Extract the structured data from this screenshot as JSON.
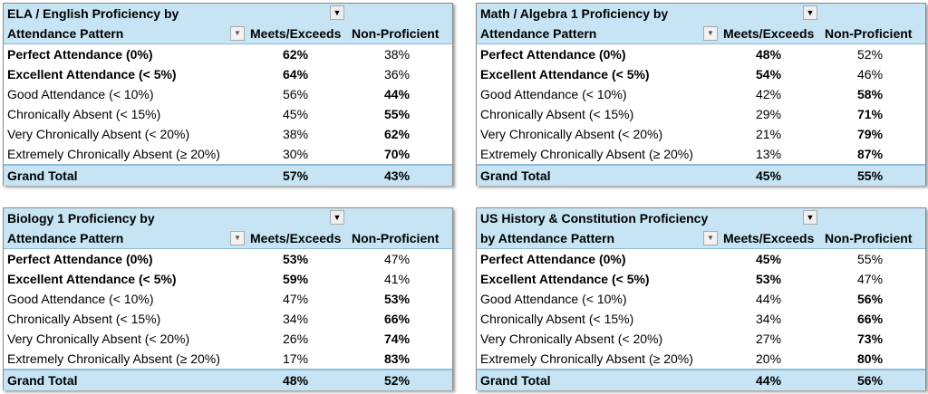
{
  "columns": {
    "meets": "Meets/Exceeds",
    "non": "Non-Proficient"
  },
  "panels": [
    {
      "title1": "ELA / English Proficiency by",
      "title2": "Attendance Pattern",
      "rows": [
        [
          "Perfect Attendance (0%)",
          "62%",
          "38%",
          1,
          1,
          0
        ],
        [
          "Excellent Attendance (< 5%)",
          "64%",
          "36%",
          1,
          1,
          0
        ],
        [
          "Good Attendance (< 10%)",
          "56%",
          "44%",
          0,
          0,
          1
        ],
        [
          "Chronically Absent (< 15%)",
          "45%",
          "55%",
          0,
          0,
          1
        ],
        [
          "Very Chronically Absent (< 20%)",
          "38%",
          "62%",
          0,
          0,
          1
        ],
        [
          "Extremely Chronically Absent (≥ 20%)",
          "30%",
          "70%",
          0,
          0,
          1
        ]
      ],
      "total": [
        "Grand Total",
        "57%",
        "43%"
      ]
    },
    {
      "title1": "Math / Algebra 1 Proficiency by",
      "title2": "Attendance Pattern",
      "rows": [
        [
          "Perfect Attendance (0%)",
          "48%",
          "52%",
          1,
          1,
          0
        ],
        [
          "Excellent Attendance (< 5%)",
          "54%",
          "46%",
          1,
          1,
          0
        ],
        [
          "Good Attendance (< 10%)",
          "42%",
          "58%",
          0,
          0,
          1
        ],
        [
          "Chronically Absent (< 15%)",
          "29%",
          "71%",
          0,
          0,
          1
        ],
        [
          "Very Chronically Absent (< 20%)",
          "21%",
          "79%",
          0,
          0,
          1
        ],
        [
          "Extremely Chronically Absent (≥ 20%)",
          "13%",
          "87%",
          0,
          0,
          1
        ]
      ],
      "total": [
        "Grand Total",
        "45%",
        "55%"
      ]
    },
    {
      "title1": "Biology 1 Proficiency by",
      "title2": "Attendance Pattern",
      "rows": [
        [
          "Perfect Attendance (0%)",
          "53%",
          "47%",
          1,
          1,
          0
        ],
        [
          "Excellent Attendance (< 5%)",
          "59%",
          "41%",
          1,
          1,
          0
        ],
        [
          "Good Attendance (< 10%)",
          "47%",
          "53%",
          0,
          0,
          1
        ],
        [
          "Chronically Absent (< 15%)",
          "34%",
          "66%",
          0,
          0,
          1
        ],
        [
          "Very Chronically Absent (< 20%)",
          "26%",
          "74%",
          0,
          0,
          1
        ],
        [
          "Extremely Chronically Absent (≥ 20%)",
          "17%",
          "83%",
          0,
          0,
          1
        ]
      ],
      "total": [
        "Grand Total",
        "48%",
        "52%"
      ]
    },
    {
      "title1": "US History & Constitution Proficiency",
      "title2": "by Attendance Pattern",
      "rows": [
        [
          "Perfect Attendance (0%)",
          "45%",
          "55%",
          1,
          1,
          0
        ],
        [
          "Excellent Attendance (< 5%)",
          "53%",
          "47%",
          1,
          1,
          0
        ],
        [
          "Good Attendance (< 10%)",
          "44%",
          "56%",
          0,
          0,
          1
        ],
        [
          "Chronically Absent (< 15%)",
          "34%",
          "66%",
          0,
          0,
          1
        ],
        [
          "Very Chronically Absent (< 20%)",
          "27%",
          "73%",
          0,
          0,
          1
        ],
        [
          "Extremely Chronically Absent (≥ 20%)",
          "20%",
          "80%",
          0,
          0,
          1
        ]
      ],
      "total": [
        "Grand Total",
        "44%",
        "56%"
      ]
    }
  ]
}
